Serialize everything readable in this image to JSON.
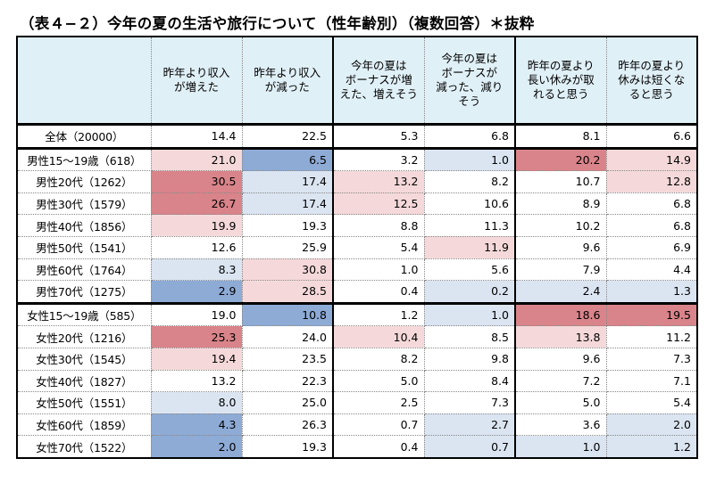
{
  "title": "（表４−２）今年の夏の生活や旅行について（性年齢別）（複数回答）＊抜粋",
  "headers": [
    [
      "昨年より収入",
      "が増えた"
    ],
    [
      "昨年より収入",
      "が減った"
    ],
    [
      "今年の夏は",
      "ボーナスが増",
      "えた、増えそう"
    ],
    [
      "今年の夏は",
      "ボーナスが",
      "減った、減り",
      "そう"
    ],
    [
      "昨年の夏より",
      "長い休みが取",
      "れると思う"
    ],
    [
      "昨年の夏より",
      "休みは短くな",
      "ると思う"
    ]
  ],
  "rows": [
    {
      "label": "全体（20000）",
      "values": [
        "14.4",
        "22.5",
        "5.3",
        "6.8",
        "8.1",
        "6.6"
      ],
      "shade": [
        "",
        "",
        "",
        "",
        "",
        ""
      ]
    },
    {
      "label": "男性15〜19歳（618）",
      "values": [
        "21.0",
        "6.5",
        "3.2",
        "1.0",
        "20.2",
        "14.9"
      ],
      "shade": [
        "h1",
        "b2",
        "",
        "b1",
        "h2",
        "h1"
      ]
    },
    {
      "label": "男性20代（1262）",
      "values": [
        "30.5",
        "17.4",
        "13.2",
        "8.2",
        "10.7",
        "12.8"
      ],
      "shade": [
        "h2",
        "b1",
        "h1",
        "",
        "",
        "h1"
      ]
    },
    {
      "label": "男性30代（1579）",
      "values": [
        "26.7",
        "17.4",
        "12.5",
        "10.6",
        "8.9",
        "6.8"
      ],
      "shade": [
        "h2",
        "b1",
        "h1",
        "",
        "",
        ""
      ]
    },
    {
      "label": "男性40代（1856）",
      "values": [
        "19.9",
        "19.3",
        "8.8",
        "11.3",
        "10.2",
        "6.8"
      ],
      "shade": [
        "h1",
        "",
        "",
        "",
        "",
        ""
      ]
    },
    {
      "label": "男性50代（1541）",
      "values": [
        "12.6",
        "25.9",
        "5.4",
        "11.9",
        "9.6",
        "6.9"
      ],
      "shade": [
        "",
        "",
        "",
        "h1",
        "",
        ""
      ]
    },
    {
      "label": "男性60代（1764）",
      "values": [
        "8.3",
        "30.8",
        "1.0",
        "5.6",
        "7.9",
        "4.4"
      ],
      "shade": [
        "b1",
        "h1",
        "",
        "",
        "",
        ""
      ]
    },
    {
      "label": "男性70代（1275）",
      "values": [
        "2.9",
        "28.5",
        "0.4",
        "0.2",
        "2.4",
        "1.3"
      ],
      "shade": [
        "b2",
        "h1",
        "",
        "b1",
        "b1",
        "b1"
      ]
    },
    {
      "label": "女性15〜19歳（585）",
      "values": [
        "19.0",
        "10.8",
        "1.2",
        "1.0",
        "18.6",
        "19.5"
      ],
      "shade": [
        "",
        "b2",
        "",
        "b1",
        "h2",
        "h2"
      ]
    },
    {
      "label": "女性20代（1216）",
      "values": [
        "25.3",
        "24.0",
        "10.4",
        "8.5",
        "13.8",
        "11.2"
      ],
      "shade": [
        "h2",
        "",
        "h1",
        "",
        "h1",
        ""
      ]
    },
    {
      "label": "女性30代（1545）",
      "values": [
        "19.4",
        "23.5",
        "8.2",
        "9.8",
        "9.6",
        "7.3"
      ],
      "shade": [
        "h1",
        "",
        "",
        "",
        "",
        ""
      ]
    },
    {
      "label": "女性40代（1827）",
      "values": [
        "13.2",
        "22.3",
        "5.0",
        "8.4",
        "7.2",
        "7.1"
      ],
      "shade": [
        "",
        "",
        "",
        "",
        "",
        ""
      ]
    },
    {
      "label": "女性50代（1551）",
      "values": [
        "8.0",
        "25.0",
        "2.5",
        "7.3",
        "5.0",
        "5.4"
      ],
      "shade": [
        "b1",
        "",
        "",
        "",
        "",
        ""
      ]
    },
    {
      "label": "女性60代（1859）",
      "values": [
        "4.3",
        "26.3",
        "0.7",
        "2.7",
        "3.6",
        "2.0"
      ],
      "shade": [
        "b2",
        "",
        "",
        "b1",
        "",
        "b1"
      ]
    },
    {
      "label": "女性70代（1522）",
      "values": [
        "2.0",
        "19.3",
        "0.4",
        "0.7",
        "1.0",
        "1.2"
      ],
      "shade": [
        "b2",
        "",
        "",
        "b1",
        "b1",
        "b1"
      ]
    }
  ]
}
